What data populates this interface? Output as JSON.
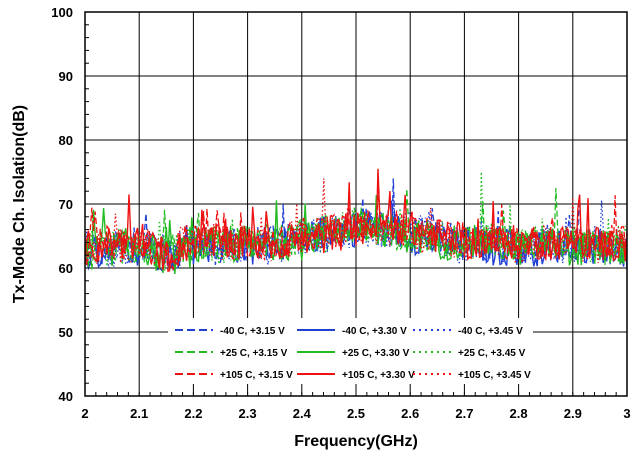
{
  "chart_data": {
    "type": "line",
    "title": "",
    "xlabel": "Frequency(GHz)",
    "ylabel": "Tx-Mode Ch. Isolation(dB)",
    "xlim": [
      2,
      3
    ],
    "ylim": [
      40,
      100
    ],
    "x_ticks": [
      2,
      2.1,
      2.2,
      2.3,
      2.4,
      2.5,
      2.6,
      2.7,
      2.8,
      2.9,
      3
    ],
    "x_tick_labels": [
      "2",
      "2.1",
      "2.2",
      "2.3",
      "2.4",
      "2.5",
      "2.6",
      "2.7",
      "2.8",
      "2.9",
      "3"
    ],
    "y_ticks": [
      40,
      50,
      60,
      70,
      80,
      90,
      100
    ],
    "y_tick_labels": [
      "40",
      "50",
      "60",
      "70",
      "80",
      "90",
      "100"
    ],
    "grid": true,
    "legend_position": "bottom-center",
    "x": [
      2.0,
      2.05,
      2.1,
      2.15,
      2.2,
      2.25,
      2.3,
      2.35,
      2.4,
      2.45,
      2.5,
      2.55,
      2.6,
      2.65,
      2.7,
      2.75,
      2.8,
      2.85,
      2.9,
      2.95,
      3.0
    ],
    "series": [
      {
        "name": "-40 C, +3.15 V",
        "color": "#1f3fd6",
        "dash": "dashed",
        "values": [
          62,
          63,
          64,
          62,
          64,
          63,
          64,
          64,
          65,
          65,
          67,
          66,
          66,
          65,
          64,
          64,
          63,
          64,
          64,
          63,
          63
        ]
      },
      {
        "name": "-40 C, +3.30 V",
        "color": "#1f3fd6",
        "dash": "solid",
        "values": [
          62,
          63,
          63,
          62,
          63,
          64,
          63,
          64,
          64,
          66,
          66,
          67,
          65,
          64,
          64,
          63,
          63,
          63,
          64,
          63,
          62
        ]
      },
      {
        "name": "-40 C, +3.45 V",
        "color": "#1f3fd6",
        "dash": "dotted",
        "values": [
          63,
          62,
          64,
          63,
          64,
          63,
          64,
          63,
          65,
          65,
          66,
          66,
          66,
          65,
          63,
          64,
          63,
          64,
          63,
          64,
          63
        ]
      },
      {
        "name": "+25 C, +3.15 V",
        "color": "#22bb22",
        "dash": "dashed",
        "values": [
          62,
          64,
          63,
          62,
          64,
          64,
          64,
          64,
          65,
          66,
          67,
          66,
          65,
          65,
          64,
          65,
          63,
          64,
          64,
          63,
          63
        ]
      },
      {
        "name": "+25 C, +3.30 V",
        "color": "#22bb22",
        "dash": "solid",
        "values": [
          63,
          63,
          64,
          61,
          63,
          64,
          63,
          64,
          64,
          66,
          66,
          66,
          65,
          64,
          64,
          64,
          63,
          64,
          63,
          63,
          63
        ]
      },
      {
        "name": "+25 C, +3.45 V",
        "color": "#22bb22",
        "dash": "dotted",
        "values": [
          62,
          63,
          63,
          62,
          64,
          63,
          64,
          63,
          65,
          65,
          67,
          66,
          65,
          65,
          64,
          64,
          64,
          65,
          64,
          63,
          64
        ]
      },
      {
        "name": "+105 C, +3.15 V",
        "color": "#ee1111",
        "dash": "dashed",
        "values": [
          63,
          64,
          64,
          62,
          64,
          64,
          64,
          64,
          65,
          66,
          66,
          67,
          66,
          65,
          64,
          64,
          64,
          64,
          64,
          64,
          64
        ]
      },
      {
        "name": "+105 C, +3.30 V",
        "color": "#ee1111",
        "dash": "solid",
        "values": [
          63,
          64,
          64,
          62,
          64,
          64,
          64,
          64,
          64,
          65,
          66,
          67,
          66,
          65,
          64,
          64,
          64,
          64,
          64,
          64,
          63
        ]
      },
      {
        "name": "+105 C, +3.45 V",
        "color": "#ee1111",
        "dash": "dotted",
        "values": [
          63,
          63,
          64,
          62,
          65,
          64,
          64,
          63,
          65,
          66,
          67,
          66,
          65,
          65,
          64,
          64,
          63,
          64,
          64,
          63,
          64
        ]
      }
    ],
    "peaks": [
      {
        "name": "-40 C, +3.15 V",
        "x": 2.57,
        "y": 74
      },
      {
        "name": "+25 C, +3.45 V",
        "x": 2.73,
        "y": 75
      },
      {
        "name": "+25 C, +3.15 V",
        "x": 2.87,
        "y": 72.5
      },
      {
        "name": "+105 C, +3.30 V",
        "x": 2.54,
        "y": 75.5
      },
      {
        "name": "+105 C, +3.30 V",
        "x": 2.08,
        "y": 71.5
      },
      {
        "name": "+105 C, +3.45 V",
        "x": 2.44,
        "y": 74
      },
      {
        "name": "+105 C, +3.45 V",
        "x": 2.9,
        "y": 71
      }
    ]
  }
}
